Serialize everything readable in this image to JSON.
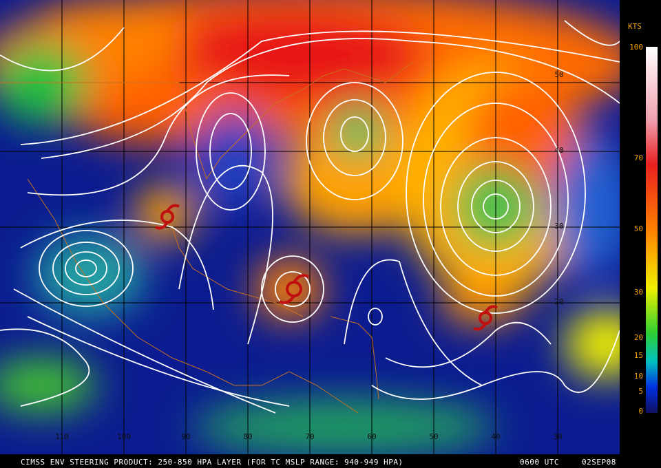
{
  "legend": {
    "title": "KTS",
    "ticks": [
      "100",
      "70",
      "50",
      "30",
      "20",
      "15",
      "10",
      "5",
      "0"
    ]
  },
  "longitudes": [
    "110",
    "100",
    "90",
    "80",
    "70",
    "60",
    "50",
    "40",
    "30"
  ],
  "latitudes": [
    "50",
    "40",
    "30",
    "20"
  ],
  "footer": {
    "product": "CIMSS ENV STEERING PRODUCT: 250-850 HPA LAYER (FOR TC MSLP RANGE: 940-949 HPA)",
    "time": "0600 UTC",
    "date": "02SEP08"
  }
}
